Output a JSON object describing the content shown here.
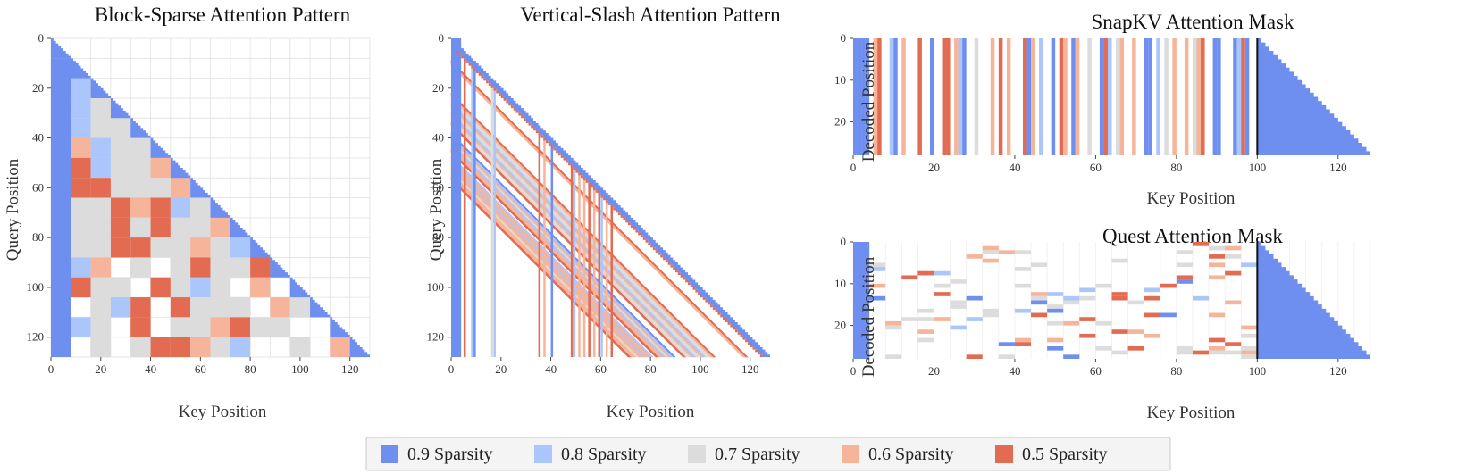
{
  "colors": {
    "s09": "#6f8ff0",
    "s08": "#abc6fa",
    "s07": "#dcdcdc",
    "s06": "#f6b59a",
    "s05": "#e26b52",
    "grid": "#e6e6e6",
    "boundary": "#111111"
  },
  "legend": {
    "items": [
      {
        "label": "0.9 Sparsity",
        "color_key": "s09"
      },
      {
        "label": "0.8 Sparsity",
        "color_key": "s08"
      },
      {
        "label": "0.7 Sparsity",
        "color_key": "s07"
      },
      {
        "label": "0.6 Sparsity",
        "color_key": "s06"
      },
      {
        "label": "0.5 Sparsity",
        "color_key": "s05"
      }
    ]
  },
  "chart_data": [
    {
      "id": "block_sparse",
      "type": "heatmap",
      "title": "Block-Sparse Attention Pattern",
      "xlabel": "Key Position",
      "ylabel": "Query Position",
      "xlim": [
        0,
        128
      ],
      "ylim": [
        128,
        0
      ],
      "xticks": [
        0,
        20,
        40,
        60,
        80,
        100,
        120
      ],
      "yticks": [
        0,
        20,
        40,
        60,
        80,
        100,
        120
      ],
      "block_size": 8,
      "grid": true,
      "causal": true,
      "diagonal_sparsity": "0.9",
      "first_column_sparsity": "0.9",
      "blocks": [
        {
          "row": 2,
          "col": 1,
          "s": "0.8"
        },
        {
          "row": 3,
          "col": 1,
          "s": "0.8"
        },
        {
          "row": 3,
          "col": 2,
          "s": "0.7"
        },
        {
          "row": 4,
          "col": 1,
          "s": "0.8"
        },
        {
          "row": 4,
          "col": 2,
          "s": "0.7"
        },
        {
          "row": 4,
          "col": 3,
          "s": "0.7"
        },
        {
          "row": 5,
          "col": 1,
          "s": "0.6"
        },
        {
          "row": 5,
          "col": 2,
          "s": "0.8"
        },
        {
          "row": 5,
          "col": 3,
          "s": "0.7"
        },
        {
          "row": 5,
          "col": 4,
          "s": "0.7"
        },
        {
          "row": 6,
          "col": 1,
          "s": "0.5"
        },
        {
          "row": 6,
          "col": 2,
          "s": "0.8"
        },
        {
          "row": 6,
          "col": 3,
          "s": "0.7"
        },
        {
          "row": 6,
          "col": 4,
          "s": "0.7"
        },
        {
          "row": 6,
          "col": 5,
          "s": "0.6"
        },
        {
          "row": 7,
          "col": 1,
          "s": "0.5"
        },
        {
          "row": 7,
          "col": 2,
          "s": "0.5"
        },
        {
          "row": 7,
          "col": 3,
          "s": "0.7"
        },
        {
          "row": 7,
          "col": 4,
          "s": "0.7"
        },
        {
          "row": 7,
          "col": 5,
          "s": "0.7"
        },
        {
          "row": 7,
          "col": 6,
          "s": "0.6"
        },
        {
          "row": 8,
          "col": 1,
          "s": "0.7"
        },
        {
          "row": 8,
          "col": 2,
          "s": "0.7"
        },
        {
          "row": 8,
          "col": 3,
          "s": "0.5"
        },
        {
          "row": 8,
          "col": 4,
          "s": "0.6"
        },
        {
          "row": 8,
          "col": 5,
          "s": "0.5"
        },
        {
          "row": 8,
          "col": 6,
          "s": "0.8"
        },
        {
          "row": 8,
          "col": 7,
          "s": "0.7"
        },
        {
          "row": 9,
          "col": 1,
          "s": "0.7"
        },
        {
          "row": 9,
          "col": 2,
          "s": "0.7"
        },
        {
          "row": 9,
          "col": 3,
          "s": "0.5"
        },
        {
          "row": 9,
          "col": 4,
          "s": "0.7"
        },
        {
          "row": 9,
          "col": 5,
          "s": "0.5"
        },
        {
          "row": 9,
          "col": 6,
          "s": "0.7"
        },
        {
          "row": 9,
          "col": 7,
          "s": "0.7"
        },
        {
          "row": 9,
          "col": 8,
          "s": "0.6"
        },
        {
          "row": 10,
          "col": 1,
          "s": "0.7"
        },
        {
          "row": 10,
          "col": 2,
          "s": "0.7"
        },
        {
          "row": 10,
          "col": 3,
          "s": "0.5"
        },
        {
          "row": 10,
          "col": 4,
          "s": "0.5"
        },
        {
          "row": 10,
          "col": 5,
          "s": "0.7"
        },
        {
          "row": 10,
          "col": 6,
          "s": "0.7"
        },
        {
          "row": 10,
          "col": 7,
          "s": "0.6"
        },
        {
          "row": 10,
          "col": 8,
          "s": "0.7"
        },
        {
          "row": 10,
          "col": 9,
          "s": "0.8"
        },
        {
          "row": 11,
          "col": 1,
          "s": "0.8"
        },
        {
          "row": 11,
          "col": 2,
          "s": "0.6"
        },
        {
          "row": 11,
          "col": 4,
          "s": "0.7"
        },
        {
          "row": 11,
          "col": 6,
          "s": "0.7"
        },
        {
          "row": 11,
          "col": 7,
          "s": "0.5"
        },
        {
          "row": 11,
          "col": 8,
          "s": "0.7"
        },
        {
          "row": 11,
          "col": 9,
          "s": "0.7"
        },
        {
          "row": 11,
          "col": 10,
          "s": "0.5"
        },
        {
          "row": 12,
          "col": 1,
          "s": "0.5"
        },
        {
          "row": 12,
          "col": 2,
          "s": "0.7"
        },
        {
          "row": 12,
          "col": 3,
          "s": "0.7"
        },
        {
          "row": 12,
          "col": 5,
          "s": "0.5"
        },
        {
          "row": 12,
          "col": 6,
          "s": "0.7"
        },
        {
          "row": 12,
          "col": 7,
          "s": "0.8"
        },
        {
          "row": 12,
          "col": 8,
          "s": "0.7"
        },
        {
          "row": 12,
          "col": 10,
          "s": "0.6"
        },
        {
          "row": 13,
          "col": 2,
          "s": "0.7"
        },
        {
          "row": 13,
          "col": 3,
          "s": "0.8"
        },
        {
          "row": 13,
          "col": 4,
          "s": "0.5"
        },
        {
          "row": 13,
          "col": 6,
          "s": "0.5"
        },
        {
          "row": 13,
          "col": 7,
          "s": "0.7"
        },
        {
          "row": 13,
          "col": 8,
          "s": "0.7"
        },
        {
          "row": 13,
          "col": 9,
          "s": "0.7"
        },
        {
          "row": 13,
          "col": 11,
          "s": "0.6"
        },
        {
          "row": 13,
          "col": 12,
          "s": "0.7"
        },
        {
          "row": 14,
          "col": 1,
          "s": "0.8"
        },
        {
          "row": 14,
          "col": 2,
          "s": "0.7"
        },
        {
          "row": 14,
          "col": 4,
          "s": "0.5"
        },
        {
          "row": 14,
          "col": 6,
          "s": "0.7"
        },
        {
          "row": 14,
          "col": 7,
          "s": "0.7"
        },
        {
          "row": 14,
          "col": 8,
          "s": "0.6"
        },
        {
          "row": 14,
          "col": 9,
          "s": "0.5"
        },
        {
          "row": 14,
          "col": 10,
          "s": "0.7"
        },
        {
          "row": 14,
          "col": 11,
          "s": "0.7"
        },
        {
          "row": 15,
          "col": 2,
          "s": "0.7"
        },
        {
          "row": 15,
          "col": 4,
          "s": "0.7"
        },
        {
          "row": 15,
          "col": 5,
          "s": "0.5"
        },
        {
          "row": 15,
          "col": 6,
          "s": "0.5"
        },
        {
          "row": 15,
          "col": 7,
          "s": "0.6"
        },
        {
          "row": 15,
          "col": 8,
          "s": "0.7"
        },
        {
          "row": 15,
          "col": 9,
          "s": "0.8"
        },
        {
          "row": 15,
          "col": 12,
          "s": "0.7"
        },
        {
          "row": 15,
          "col": 14,
          "s": "0.6"
        }
      ]
    },
    {
      "id": "vertical_slash",
      "type": "heatmap",
      "title": "Vertical-Slash Attention Pattern",
      "xlabel": "Key Position",
      "ylabel": "Query Position",
      "xlim": [
        0,
        128
      ],
      "ylim": [
        128,
        0
      ],
      "xticks": [
        0,
        20,
        40,
        60,
        80,
        100,
        120
      ],
      "yticks": [
        0,
        20,
        40,
        60,
        80,
        100,
        120
      ],
      "grid": false,
      "causal": true,
      "diagonal_band": {
        "width": 2,
        "s": "0.9",
        "edge_s": "0.5"
      },
      "first_columns": {
        "count": 4,
        "s": "0.9"
      },
      "verticals": [
        {
          "col": 5,
          "s": "0.5"
        },
        {
          "col": 8,
          "s": "0.8"
        },
        {
          "col": 9,
          "s": "0.9"
        },
        {
          "col": 16,
          "s": "0.7"
        },
        {
          "col": 17,
          "s": "0.8"
        },
        {
          "col": 35,
          "s": "0.5"
        },
        {
          "col": 37,
          "s": "0.6"
        },
        {
          "col": 40,
          "s": "0.9"
        },
        {
          "col": 48,
          "s": "0.5"
        },
        {
          "col": 49,
          "s": "0.8"
        },
        {
          "col": 51,
          "s": "0.6"
        },
        {
          "col": 53,
          "s": "0.6"
        },
        {
          "col": 55,
          "s": "0.5"
        },
        {
          "col": 57,
          "s": "0.6"
        },
        {
          "col": 59,
          "s": "0.5"
        },
        {
          "col": 60,
          "s": "0.8"
        },
        {
          "col": 62,
          "s": "0.6"
        },
        {
          "col": 64,
          "s": "0.5"
        }
      ],
      "slashes": [
        {
          "offset": 9,
          "s": "0.5"
        },
        {
          "offset": 10,
          "s": "0.6"
        },
        {
          "offset": 22,
          "s": "0.5"
        },
        {
          "offset": 23,
          "s": "0.6"
        },
        {
          "offset": 24,
          "s": "0.7"
        },
        {
          "offset": 25,
          "s": "0.7"
        },
        {
          "offset": 26,
          "s": "0.8"
        },
        {
          "offset": 27,
          "s": "0.6"
        },
        {
          "offset": 28,
          "s": "0.7"
        },
        {
          "offset": 29,
          "s": "0.7"
        },
        {
          "offset": 30,
          "s": "0.8"
        },
        {
          "offset": 31,
          "s": "0.6"
        },
        {
          "offset": 32,
          "s": "0.7"
        },
        {
          "offset": 33,
          "s": "0.7"
        },
        {
          "offset": 34,
          "s": "0.5"
        },
        {
          "offset": 38,
          "s": "0.9"
        },
        {
          "offset": 39,
          "s": "0.8"
        },
        {
          "offset": 40,
          "s": "0.6"
        },
        {
          "offset": 41,
          "s": "0.7"
        },
        {
          "offset": 42,
          "s": "0.8"
        },
        {
          "offset": 43,
          "s": "0.6"
        },
        {
          "offset": 44,
          "s": "0.6"
        },
        {
          "offset": 45,
          "s": "0.5"
        },
        {
          "offset": 47,
          "s": "0.8"
        },
        {
          "offset": 48,
          "s": "0.6"
        },
        {
          "offset": 49,
          "s": "0.6"
        },
        {
          "offset": 50,
          "s": "0.8"
        },
        {
          "offset": 51,
          "s": "0.6"
        },
        {
          "offset": 52,
          "s": "0.6"
        },
        {
          "offset": 53,
          "s": "0.7"
        },
        {
          "offset": 54,
          "s": "0.6"
        },
        {
          "offset": 55,
          "s": "0.6"
        },
        {
          "offset": 56,
          "s": "0.5"
        }
      ]
    },
    {
      "id": "snapkv",
      "type": "heatmap",
      "title": "SnapKV Attention Mask",
      "xlabel": "Key Position",
      "ylabel": "Decoded Position",
      "xlim": [
        0,
        128
      ],
      "ylim": [
        28,
        0
      ],
      "xticks": [
        0,
        20,
        40,
        60,
        80,
        100,
        120
      ],
      "yticks": [
        0,
        10,
        20
      ],
      "rows": 28,
      "boundary": 100,
      "columns": [
        {
          "x": 0,
          "s": "0.9"
        },
        {
          "x": 1,
          "s": "0.9"
        },
        {
          "x": 2,
          "s": "0.9"
        },
        {
          "x": 3,
          "s": "0.9"
        },
        {
          "x": 5,
          "s": "0.6"
        },
        {
          "x": 6,
          "s": "0.5"
        },
        {
          "x": 9,
          "s": "0.8"
        },
        {
          "x": 10,
          "s": "0.9"
        },
        {
          "x": 12,
          "s": "0.6"
        },
        {
          "x": 16,
          "s": "0.5"
        },
        {
          "x": 19,
          "s": "0.9"
        },
        {
          "x": 22,
          "s": "0.5"
        },
        {
          "x": 23,
          "s": "0.5"
        },
        {
          "x": 25,
          "s": "0.6"
        },
        {
          "x": 26,
          "s": "0.8"
        },
        {
          "x": 27,
          "s": "0.9"
        },
        {
          "x": 30,
          "s": "0.7"
        },
        {
          "x": 34,
          "s": "0.6"
        },
        {
          "x": 36,
          "s": "0.5"
        },
        {
          "x": 38,
          "s": "0.6"
        },
        {
          "x": 42,
          "s": "0.5"
        },
        {
          "x": 43,
          "s": "0.9"
        },
        {
          "x": 44,
          "s": "0.6"
        },
        {
          "x": 46,
          "s": "0.8"
        },
        {
          "x": 49,
          "s": "0.9"
        },
        {
          "x": 51,
          "s": "0.5"
        },
        {
          "x": 52,
          "s": "0.6"
        },
        {
          "x": 54,
          "s": "0.9"
        },
        {
          "x": 55,
          "s": "0.6"
        },
        {
          "x": 58,
          "s": "0.7"
        },
        {
          "x": 61,
          "s": "0.9"
        },
        {
          "x": 62,
          "s": "0.5"
        },
        {
          "x": 63,
          "s": "0.8"
        },
        {
          "x": 65,
          "s": "0.7"
        },
        {
          "x": 66,
          "s": "0.6"
        },
        {
          "x": 69,
          "s": "0.6"
        },
        {
          "x": 72,
          "s": "0.9"
        },
        {
          "x": 73,
          "s": "0.9"
        },
        {
          "x": 75,
          "s": "0.8"
        },
        {
          "x": 77,
          "s": "0.7"
        },
        {
          "x": 79,
          "s": "0.6"
        },
        {
          "x": 82,
          "s": "0.6"
        },
        {
          "x": 84,
          "s": "0.7"
        },
        {
          "x": 85,
          "s": "0.6"
        },
        {
          "x": 86,
          "s": "0.5"
        },
        {
          "x": 89,
          "s": "0.9"
        },
        {
          "x": 90,
          "s": "0.9"
        },
        {
          "x": 94,
          "s": "0.9"
        },
        {
          "x": 95,
          "s": "0.8"
        },
        {
          "x": 96,
          "s": "0.5"
        },
        {
          "x": 97,
          "s": "0.9"
        }
      ],
      "causal_region": {
        "start": 100,
        "s": "0.9"
      }
    },
    {
      "id": "quest",
      "type": "heatmap",
      "title": "Quest Attention Mask",
      "xlabel": "Key Position",
      "ylabel": "Decoded Position",
      "xlim": [
        0,
        128
      ],
      "ylim": [
        28,
        0
      ],
      "xticks": [
        0,
        20,
        40,
        60,
        80,
        100,
        120
      ],
      "yticks": [
        0,
        10,
        20
      ],
      "rows": 28,
      "boundary": 100,
      "page_size": 4,
      "sink_columns": {
        "count": 4,
        "s": "0.9"
      },
      "selection_rule": "per decoded row, a random subset of 4-token pages in [4, 100) is selected, colored by sparsity level",
      "causal_region": {
        "start": 100,
        "s": "0.9"
      }
    }
  ]
}
